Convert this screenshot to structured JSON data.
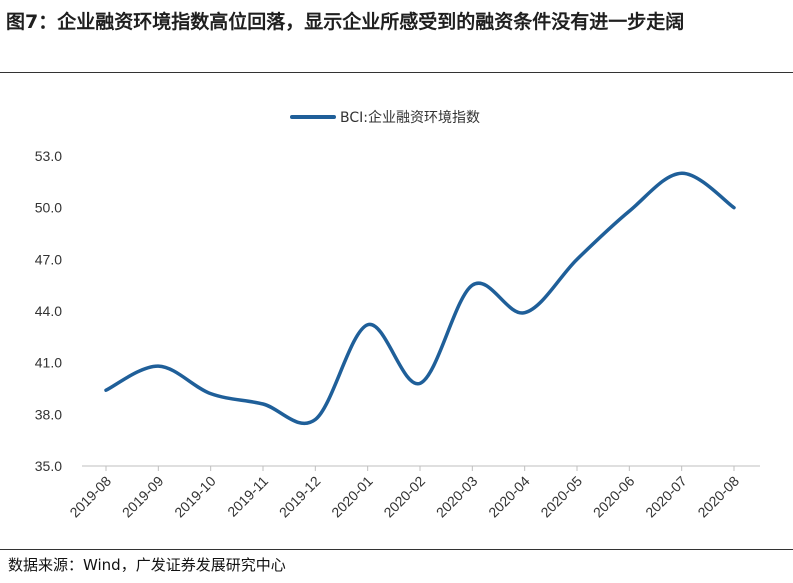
{
  "figure": {
    "title": "图7：企业融资环境指数高位回落，显示企业所感受到的融资条件没有进一步走阔",
    "source": "数据来源：Wind，广发证券发展研究中心"
  },
  "chart_data": {
    "type": "line",
    "x": [
      "2019-08",
      "2019-09",
      "2019-10",
      "2019-11",
      "2019-12",
      "2020-01",
      "2020-02",
      "2020-03",
      "2020-04",
      "2020-05",
      "2020-06",
      "2020-07",
      "2020-08"
    ],
    "series": [
      {
        "name": "BCI:企业融资环境指数",
        "color": "#1f5f99",
        "values": [
          39.4,
          40.8,
          39.2,
          38.6,
          37.7,
          43.2,
          39.8,
          45.5,
          43.9,
          47.0,
          49.8,
          52.0,
          50.0
        ]
      }
    ],
    "ylim": [
      35.0,
      53.0
    ],
    "yticks": [
      "53.0",
      "50.0",
      "47.0",
      "44.0",
      "41.0",
      "38.0",
      "35.0"
    ],
    "legend_position": "top-center",
    "grid": false
  }
}
